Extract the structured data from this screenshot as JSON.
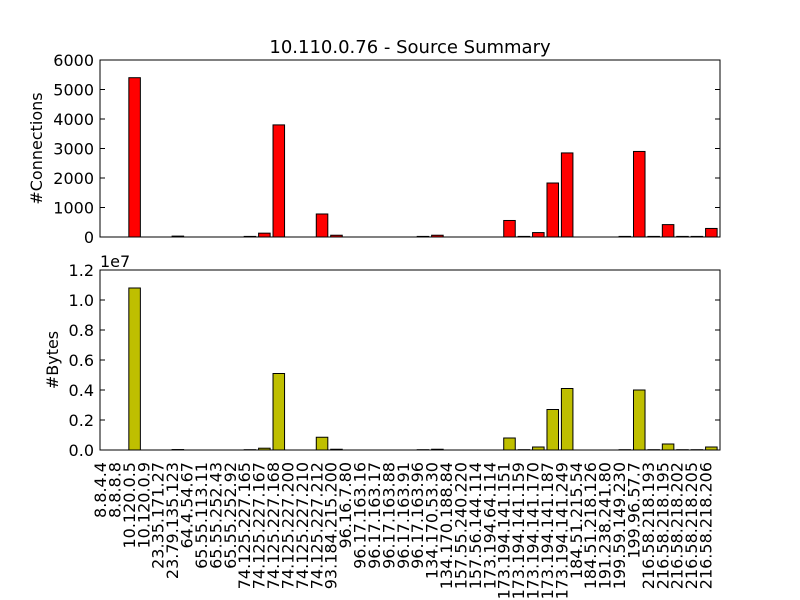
{
  "chart_data": [
    {
      "type": "bar",
      "title": "10.110.0.76 - Source Summary",
      "ylabel": "#Connections",
      "color": "#ff0000",
      "values": [
        0,
        0,
        5400,
        0,
        0,
        30,
        0,
        0,
        0,
        0,
        20,
        130,
        3800,
        0,
        0,
        780,
        60,
        0,
        0,
        0,
        0,
        0,
        20,
        60,
        0,
        0,
        0,
        0,
        560,
        20,
        150,
        1830,
        2850,
        0,
        0,
        0,
        20,
        2900,
        20,
        420,
        20,
        20,
        290
      ],
      "ylim": [
        0,
        6000
      ],
      "yticks": [
        0,
        1000,
        2000,
        3000,
        4000,
        5000,
        6000
      ]
    },
    {
      "type": "bar",
      "ylabel": "#Bytes",
      "offset_text": "1e7",
      "color": "#bfbf00",
      "categories": [
        "8.8.4.4",
        "8.8.8.8",
        "10.120.0.5",
        "10.120.0.9",
        "23.35.171.27",
        "23.79.135.123",
        "64.4.54.67",
        "65.55.113.11",
        "65.55.252.43",
        "65.55.252.92",
        "74.125.227.165",
        "74.125.227.167",
        "74.125.227.168",
        "74.125.227.200",
        "74.125.227.210",
        "74.125.227.212",
        "93.184.215.200",
        "96.16.7.80",
        "96.17.163.16",
        "96.17.163.17",
        "96.17.163.88",
        "96.17.163.91",
        "96.17.163.96",
        "134.170.53.30",
        "134.170.188.84",
        "157.55.240.220",
        "157.56.144.114",
        "173.194.64.114",
        "173.194.141.151",
        "173.194.141.159",
        "173.194.141.170",
        "173.194.141.187",
        "173.194.141.249",
        "184.51.215.54",
        "184.51.218.126",
        "191.238.241.80",
        "199.59.149.230",
        "199.96.57.7",
        "216.58.218.193",
        "216.58.218.195",
        "216.58.218.202",
        "216.58.218.205",
        "216.58.218.206"
      ],
      "values": [
        0,
        0,
        1.08,
        0,
        0,
        0.003,
        0,
        0,
        0,
        0,
        0.002,
        0.012,
        0.51,
        0,
        0,
        0.085,
        0.005,
        0,
        0,
        0,
        0,
        0,
        0.002,
        0.005,
        0,
        0,
        0,
        0,
        0.08,
        0.002,
        0.02,
        0.27,
        0.41,
        0,
        0,
        0,
        0.002,
        0.4,
        0.002,
        0.04,
        0.002,
        0.002,
        0.02
      ],
      "ylim": [
        0,
        1.2
      ],
      "yticks": [
        {
          "value": 0,
          "label": "0.0"
        },
        0.2,
        0.4,
        0.6,
        0.8,
        {
          "value": 1,
          "label": "1.0"
        },
        1.2
      ]
    }
  ]
}
